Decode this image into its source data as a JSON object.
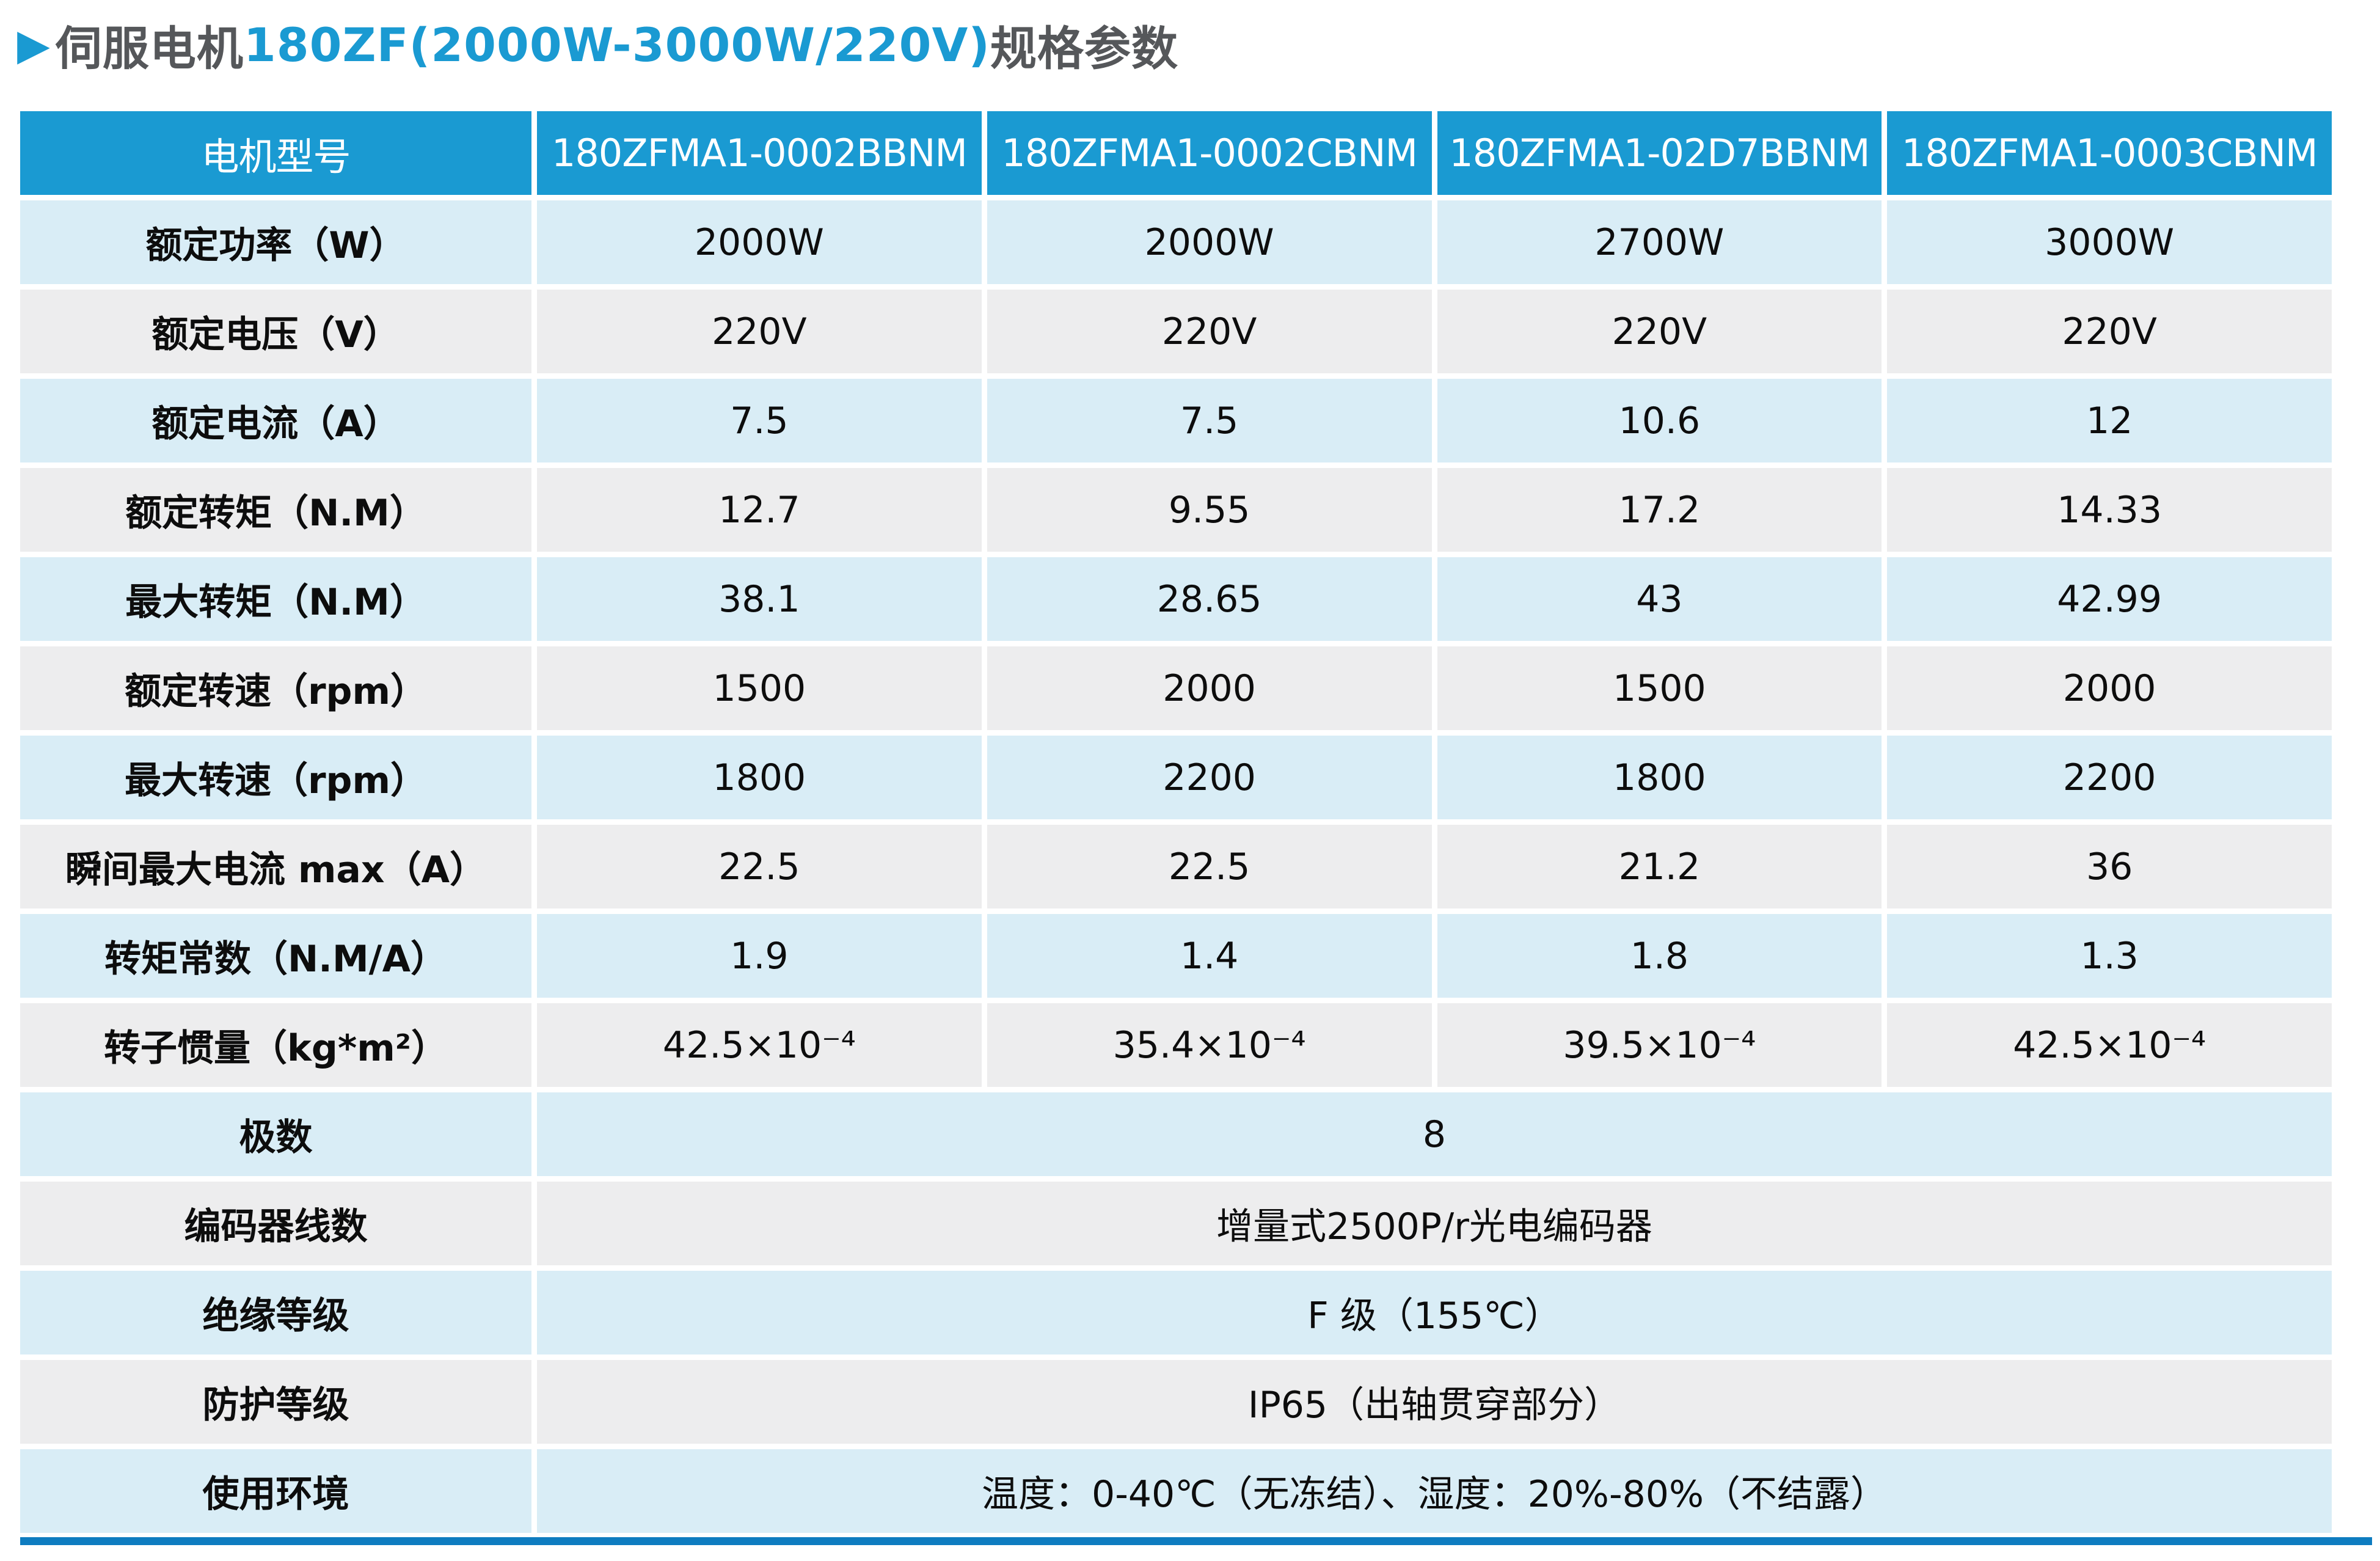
{
  "title": {
    "arrow": "▶",
    "prefix": "伺服电机",
    "model": "180ZF(2000W-3000W/220V)",
    "suffix": "规格参数"
  },
  "colors": {
    "header_bg": "#1a9ad2",
    "row_light_blue": "#d9edf6",
    "row_light_gray": "#ededee",
    "accent_bar_blue": "#0e7cc0",
    "title_gray": "#55575a",
    "title_blue": "#1a9ad2"
  },
  "table": {
    "header": {
      "label": "电机型号",
      "models": [
        "180ZFMA1-0002BBNM",
        "180ZFMA1-0002CBNM",
        "180ZFMA1-02D7BBNM",
        "180ZFMA1-0003CBNM"
      ]
    },
    "rows": [
      {
        "label": "额定功率（W）",
        "values": [
          "2000W",
          "2000W",
          "2700W",
          "3000W"
        ]
      },
      {
        "label": "额定电压（V）",
        "values": [
          "220V",
          "220V",
          "220V",
          "220V"
        ]
      },
      {
        "label": "额定电流（A）",
        "values": [
          "7.5",
          "7.5",
          "10.6",
          "12"
        ]
      },
      {
        "label": "额定转矩（N.M）",
        "values": [
          "12.7",
          "9.55",
          "17.2",
          "14.33"
        ]
      },
      {
        "label": "最大转矩（N.M）",
        "values": [
          "38.1",
          "28.65",
          "43",
          "42.99"
        ]
      },
      {
        "label": "额定转速（rpm）",
        "values": [
          "1500",
          "2000",
          "1500",
          "2000"
        ]
      },
      {
        "label": "最大转速（rpm）",
        "values": [
          "1800",
          "2200",
          "1800",
          "2200"
        ]
      },
      {
        "label": "瞬间最大电流 max（A）",
        "values": [
          "22.5",
          "22.5",
          "21.2",
          "36"
        ]
      },
      {
        "label": "转矩常数（N.M/A）",
        "values": [
          "1.9",
          "1.4",
          "1.8",
          "1.3"
        ]
      },
      {
        "label": "转子惯量（kg*m²）",
        "values": [
          "42.5×10⁻⁴",
          "35.4×10⁻⁴",
          "39.5×10⁻⁴",
          "42.5×10⁻⁴"
        ]
      }
    ],
    "span_rows": [
      {
        "label": "极数",
        "value": "8"
      },
      {
        "label": "编码器线数",
        "value": "增量式2500P/r光电编码器"
      },
      {
        "label": "绝缘等级",
        "value": "F 级（155℃）"
      },
      {
        "label": "防护等级",
        "value": "IP65（出轴贯穿部分）"
      },
      {
        "label": "使用环境",
        "value": "温度：0-40℃（无冻结）、湿度：20%-80%（不结露）"
      }
    ]
  }
}
